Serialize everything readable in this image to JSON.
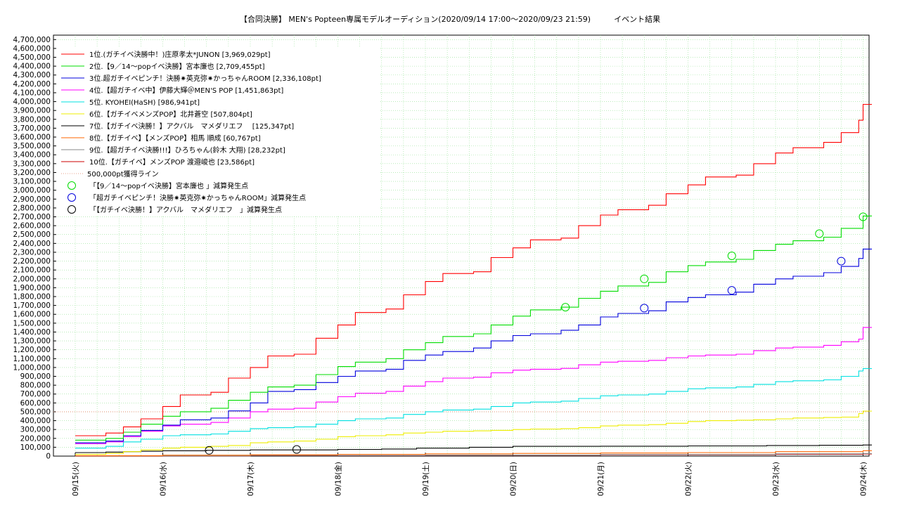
{
  "chart_data": {
    "type": "line",
    "title": "【合同決勝】 MEN's Popteen専属モデルオーディション(2020/09/14 17:00～2020/09/23 21:59)　　　イベント結果",
    "xlabel": "",
    "ylabel": "",
    "x_tick_labels": [
      "09/15(火)",
      "09/16(水)",
      "09/17(木)",
      "09/18(金)",
      "09/19(土)",
      "09/20(日)",
      "09/21(月)",
      "09/22(火)",
      "09/23(水)",
      "09/24(木)"
    ],
    "xlim_days": [
      0,
      9.1
    ],
    "ylim": [
      0,
      4750000
    ],
    "y_tick_step": 100000,
    "grid": true,
    "legend_position": "top-left",
    "threshold": {
      "label": "500,000pt獲得ライン",
      "value": 500000,
      "color": "#e08060"
    },
    "series": [
      {
        "name": "1位.(ガチイベ決勝中！)庄原孝太*JUNON [3,969,029pt]",
        "color": "#ff0000",
        "points": [
          [
            0,
            230000
          ],
          [
            0.35,
            260000
          ],
          [
            0.55,
            330000
          ],
          [
            0.75,
            420000
          ],
          [
            1.0,
            560000
          ],
          [
            1.2,
            690000
          ],
          [
            1.55,
            720000
          ],
          [
            1.75,
            880000
          ],
          [
            2.0,
            1000000
          ],
          [
            2.2,
            1130000
          ],
          [
            2.5,
            1150000
          ],
          [
            2.75,
            1330000
          ],
          [
            3.0,
            1480000
          ],
          [
            3.2,
            1620000
          ],
          [
            3.55,
            1660000
          ],
          [
            3.75,
            1820000
          ],
          [
            4.0,
            1970000
          ],
          [
            4.2,
            2060000
          ],
          [
            4.55,
            2080000
          ],
          [
            4.75,
            2240000
          ],
          [
            5.0,
            2350000
          ],
          [
            5.2,
            2440000
          ],
          [
            5.55,
            2460000
          ],
          [
            5.75,
            2600000
          ],
          [
            6.0,
            2720000
          ],
          [
            6.2,
            2780000
          ],
          [
            6.55,
            2830000
          ],
          [
            6.75,
            2960000
          ],
          [
            7.0,
            3060000
          ],
          [
            7.2,
            3150000
          ],
          [
            7.55,
            3170000
          ],
          [
            7.75,
            3300000
          ],
          [
            8.0,
            3420000
          ],
          [
            8.2,
            3480000
          ],
          [
            8.55,
            3540000
          ],
          [
            8.75,
            3650000
          ],
          [
            8.95,
            3790000
          ],
          [
            9.0,
            3969029
          ]
        ]
      },
      {
        "name": "2位.【9／14～popイベ決勝】宮本廉也 [2,709,455pt]",
        "color": "#00dd00",
        "points": [
          [
            0,
            180000
          ],
          [
            0.35,
            200000
          ],
          [
            0.55,
            270000
          ],
          [
            0.75,
            360000
          ],
          [
            1.0,
            450000
          ],
          [
            1.2,
            500000
          ],
          [
            1.55,
            540000
          ],
          [
            1.75,
            630000
          ],
          [
            2.0,
            720000
          ],
          [
            2.2,
            780000
          ],
          [
            2.5,
            800000
          ],
          [
            2.75,
            920000
          ],
          [
            3.0,
            1010000
          ],
          [
            3.2,
            1060000
          ],
          [
            3.55,
            1100000
          ],
          [
            3.75,
            1200000
          ],
          [
            4.0,
            1280000
          ],
          [
            4.2,
            1350000
          ],
          [
            4.55,
            1380000
          ],
          [
            4.75,
            1480000
          ],
          [
            5.0,
            1580000
          ],
          [
            5.2,
            1650000
          ],
          [
            5.55,
            1680000
          ],
          [
            5.75,
            1780000
          ],
          [
            6.0,
            1860000
          ],
          [
            6.2,
            1920000
          ],
          [
            6.55,
            1960000
          ],
          [
            6.75,
            2080000
          ],
          [
            7.0,
            2150000
          ],
          [
            7.2,
            2190000
          ],
          [
            7.55,
            2220000
          ],
          [
            7.75,
            2320000
          ],
          [
            8.0,
            2390000
          ],
          [
            8.2,
            2430000
          ],
          [
            8.55,
            2470000
          ],
          [
            8.75,
            2570000
          ],
          [
            9.0,
            2709455
          ]
        ]
      },
      {
        "name": "3位.超ガチイベピンチ！決勝✷英克弥✷かっちゃんROOM [2,336,108pt]",
        "color": "#0000dd",
        "points": [
          [
            0,
            150000
          ],
          [
            0.35,
            170000
          ],
          [
            0.55,
            230000
          ],
          [
            0.75,
            290000
          ],
          [
            1.0,
            350000
          ],
          [
            1.2,
            410000
          ],
          [
            1.55,
            430000
          ],
          [
            1.75,
            510000
          ],
          [
            2.0,
            600000
          ],
          [
            2.2,
            730000
          ],
          [
            2.5,
            750000
          ],
          [
            2.75,
            830000
          ],
          [
            3.0,
            900000
          ],
          [
            3.2,
            960000
          ],
          [
            3.55,
            980000
          ],
          [
            3.75,
            1080000
          ],
          [
            4.0,
            1140000
          ],
          [
            4.2,
            1180000
          ],
          [
            4.55,
            1220000
          ],
          [
            4.75,
            1300000
          ],
          [
            5.0,
            1360000
          ],
          [
            5.2,
            1380000
          ],
          [
            5.55,
            1420000
          ],
          [
            5.75,
            1480000
          ],
          [
            6.0,
            1570000
          ],
          [
            6.2,
            1610000
          ],
          [
            6.55,
            1640000
          ],
          [
            6.75,
            1740000
          ],
          [
            7.0,
            1790000
          ],
          [
            7.2,
            1820000
          ],
          [
            7.55,
            1850000
          ],
          [
            7.75,
            1940000
          ],
          [
            8.0,
            2000000
          ],
          [
            8.2,
            2030000
          ],
          [
            8.55,
            2070000
          ],
          [
            8.75,
            2140000
          ],
          [
            8.95,
            2230000
          ],
          [
            9.0,
            2336108
          ]
        ]
      },
      {
        "name": "4位.【超ガチイベ中】伊藤大輝＠MEN'S POP [1,451,863pt]",
        "color": "#ff00ff",
        "points": [
          [
            0,
            140000
          ],
          [
            0.35,
            160000
          ],
          [
            0.55,
            220000
          ],
          [
            0.75,
            280000
          ],
          [
            1.0,
            340000
          ],
          [
            1.2,
            360000
          ],
          [
            1.55,
            380000
          ],
          [
            1.75,
            430000
          ],
          [
            2.0,
            500000
          ],
          [
            2.2,
            530000
          ],
          [
            2.5,
            540000
          ],
          [
            2.75,
            610000
          ],
          [
            3.0,
            670000
          ],
          [
            3.2,
            710000
          ],
          [
            3.55,
            730000
          ],
          [
            3.75,
            790000
          ],
          [
            4.0,
            840000
          ],
          [
            4.2,
            880000
          ],
          [
            4.55,
            890000
          ],
          [
            4.75,
            940000
          ],
          [
            5.0,
            970000
          ],
          [
            5.2,
            980000
          ],
          [
            5.55,
            990000
          ],
          [
            5.75,
            1030000
          ],
          [
            6.0,
            1060000
          ],
          [
            6.2,
            1070000
          ],
          [
            6.55,
            1080000
          ],
          [
            6.75,
            1110000
          ],
          [
            7.0,
            1130000
          ],
          [
            7.2,
            1140000
          ],
          [
            7.55,
            1150000
          ],
          [
            7.75,
            1190000
          ],
          [
            8.0,
            1220000
          ],
          [
            8.2,
            1230000
          ],
          [
            8.55,
            1250000
          ],
          [
            8.75,
            1290000
          ],
          [
            8.95,
            1320000
          ],
          [
            9.0,
            1451863
          ]
        ]
      },
      {
        "name": "5位. KYOHEI(HaSH) [986,941pt]",
        "color": "#00e0e0",
        "points": [
          [
            0,
            90000
          ],
          [
            0.35,
            110000
          ],
          [
            0.55,
            160000
          ],
          [
            0.75,
            190000
          ],
          [
            1.0,
            230000
          ],
          [
            1.2,
            240000
          ],
          [
            1.55,
            250000
          ],
          [
            1.75,
            280000
          ],
          [
            2.0,
            310000
          ],
          [
            2.2,
            320000
          ],
          [
            2.5,
            330000
          ],
          [
            2.75,
            360000
          ],
          [
            3.0,
            400000
          ],
          [
            3.2,
            420000
          ],
          [
            3.55,
            430000
          ],
          [
            3.75,
            470000
          ],
          [
            4.0,
            500000
          ],
          [
            4.2,
            520000
          ],
          [
            4.55,
            530000
          ],
          [
            4.75,
            560000
          ],
          [
            5.0,
            600000
          ],
          [
            5.2,
            610000
          ],
          [
            5.55,
            620000
          ],
          [
            5.75,
            650000
          ],
          [
            6.0,
            680000
          ],
          [
            6.2,
            690000
          ],
          [
            6.55,
            700000
          ],
          [
            6.75,
            730000
          ],
          [
            7.0,
            760000
          ],
          [
            7.2,
            770000
          ],
          [
            7.55,
            780000
          ],
          [
            7.75,
            810000
          ],
          [
            8.0,
            840000
          ],
          [
            8.2,
            850000
          ],
          [
            8.55,
            860000
          ],
          [
            8.75,
            900000
          ],
          [
            8.95,
            960000
          ],
          [
            9.0,
            986941
          ]
        ]
      },
      {
        "name": "6位.【ガチイベメンズPOP】北井蒼空 [507,804pt]",
        "color": "#eeee00",
        "points": [
          [
            0,
            20000
          ],
          [
            0.35,
            30000
          ],
          [
            0.55,
            50000
          ],
          [
            0.75,
            70000
          ],
          [
            1.0,
            90000
          ],
          [
            1.2,
            100000
          ],
          [
            1.55,
            110000
          ],
          [
            1.75,
            120000
          ],
          [
            2.0,
            150000
          ],
          [
            2.2,
            160000
          ],
          [
            2.5,
            170000
          ],
          [
            2.75,
            190000
          ],
          [
            3.0,
            220000
          ],
          [
            3.2,
            230000
          ],
          [
            3.55,
            240000
          ],
          [
            3.75,
            260000
          ],
          [
            4.0,
            270000
          ],
          [
            4.2,
            280000
          ],
          [
            4.55,
            285000
          ],
          [
            4.75,
            290000
          ],
          [
            5.0,
            300000
          ],
          [
            5.2,
            305000
          ],
          [
            5.55,
            310000
          ],
          [
            5.75,
            320000
          ],
          [
            6.0,
            340000
          ],
          [
            6.2,
            350000
          ],
          [
            6.55,
            355000
          ],
          [
            6.75,
            370000
          ],
          [
            7.0,
            390000
          ],
          [
            7.2,
            400000
          ],
          [
            7.55,
            405000
          ],
          [
            7.75,
            410000
          ],
          [
            8.0,
            420000
          ],
          [
            8.2,
            430000
          ],
          [
            8.55,
            435000
          ],
          [
            8.75,
            440000
          ],
          [
            8.95,
            480000
          ],
          [
            9.0,
            507804
          ]
        ]
      },
      {
        "name": "7位.【ガチイベ決勝！】アクバル　マメダリエフ　 [125,347pt]",
        "color": "#000000",
        "points": [
          [
            0,
            40000
          ],
          [
            0.35,
            45000
          ],
          [
            0.55,
            50000
          ],
          [
            0.75,
            55000
          ],
          [
            1.0,
            60000
          ],
          [
            1.5,
            65000
          ],
          [
            2.0,
            70000
          ],
          [
            3.0,
            75000
          ],
          [
            3.5,
            80000
          ],
          [
            3.9,
            90000
          ],
          [
            4.5,
            100000
          ],
          [
            5.0,
            110000
          ],
          [
            6.0,
            112000
          ],
          [
            7.0,
            115000
          ],
          [
            7.9,
            120000
          ],
          [
            8.5,
            122000
          ],
          [
            9.0,
            125347
          ]
        ]
      },
      {
        "name": "8位.【ガチイベ】【メンズPOP】相馬 順成 [60,767pt]",
        "color": "#ff6600",
        "points": [
          [
            0,
            5000
          ],
          [
            1.0,
            10000
          ],
          [
            2.0,
            15000
          ],
          [
            3.0,
            20000
          ],
          [
            4.0,
            25000
          ],
          [
            5.0,
            30000
          ],
          [
            6.0,
            35000
          ],
          [
            7.0,
            40000
          ],
          [
            8.0,
            50000
          ],
          [
            9.0,
            60767
          ]
        ]
      },
      {
        "name": "9位.【超ガチイベ決勝!!!】ひろちゃん(鈴木 大翔) [28,232pt]",
        "color": "#888888",
        "points": [
          [
            0,
            3000
          ],
          [
            2.0,
            8000
          ],
          [
            4.0,
            12000
          ],
          [
            6.0,
            18000
          ],
          [
            8.0,
            25000
          ],
          [
            9.0,
            28232
          ]
        ]
      },
      {
        "name": "10位.【ガチイベ】メンズPOP 渡邉峻也 [23,586pt]",
        "color": "#cc0000",
        "points": [
          [
            0,
            2000
          ],
          [
            2.0,
            6000
          ],
          [
            4.0,
            10000
          ],
          [
            6.0,
            15000
          ],
          [
            8.0,
            20000
          ],
          [
            9.0,
            23586
          ]
        ]
      }
    ],
    "markers": [
      {
        "label": "「【9／14～popイベ決勝】宮本廉也 」減算発生点",
        "color": "#00dd00",
        "points": [
          [
            5.6,
            1680000
          ],
          [
            6.5,
            2000000
          ],
          [
            7.5,
            2260000
          ],
          [
            8.5,
            2510000
          ],
          [
            9.0,
            2700000
          ]
        ]
      },
      {
        "label": "「超ガチイベピンチ！決勝✷英克弥✷かっちゃんROOM」減算発生点",
        "color": "#0000dd",
        "points": [
          [
            6.5,
            1670000
          ],
          [
            7.5,
            1870000
          ],
          [
            8.75,
            2200000
          ]
        ]
      },
      {
        "label": "「【ガチイベ決勝！】アクバル　マメダリエフ　」減算発生点",
        "color": "#000000",
        "points": [
          [
            1.53,
            65000
          ],
          [
            2.53,
            75000
          ]
        ]
      }
    ]
  }
}
